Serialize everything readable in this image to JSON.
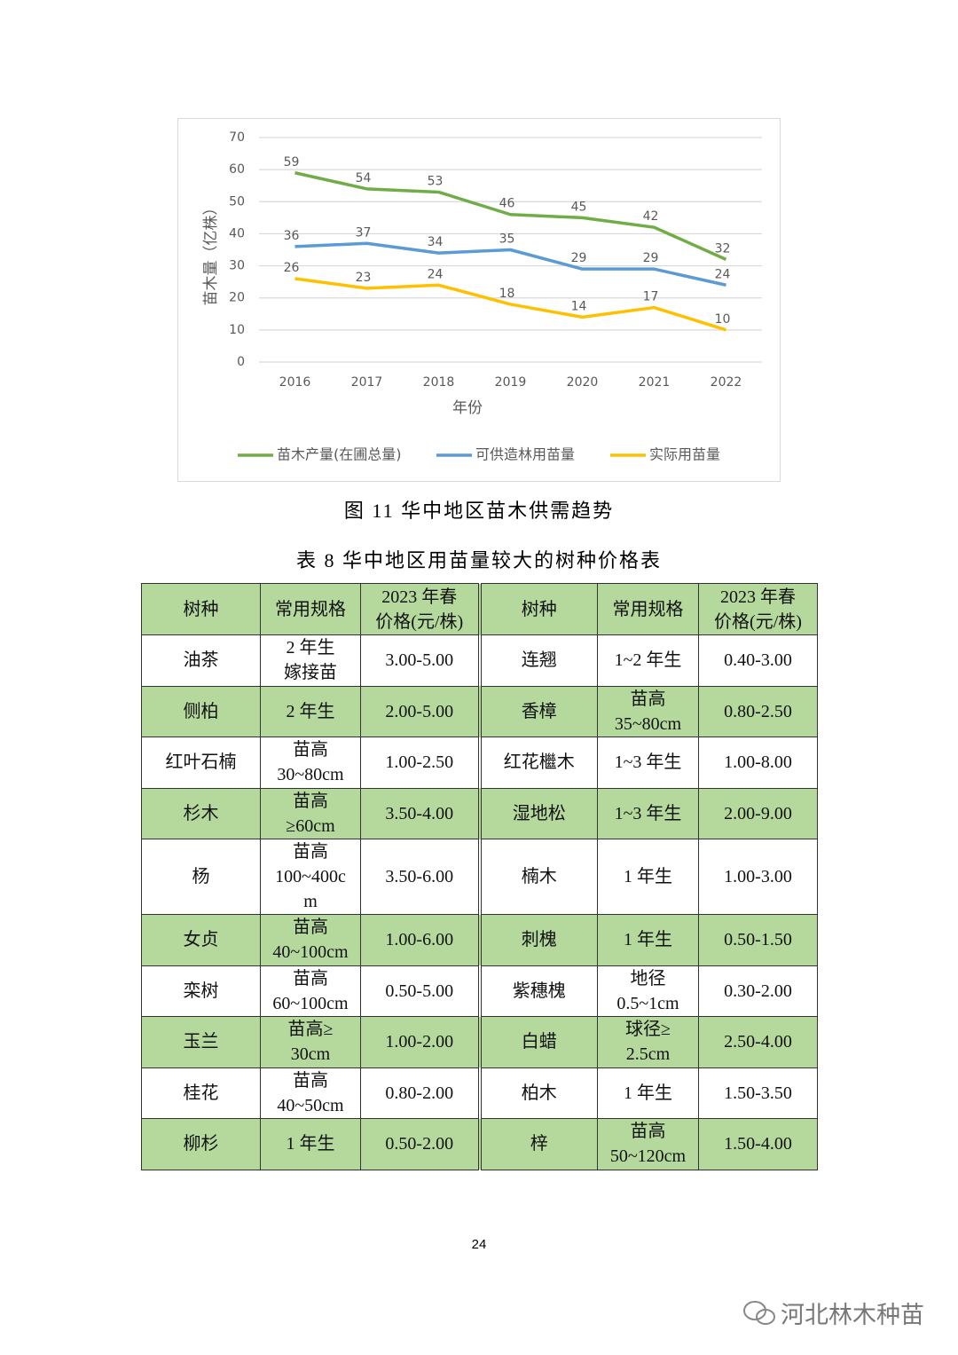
{
  "chart_data": {
    "type": "line",
    "xlabel": "年份",
    "ylabel": "苗木量（亿株）",
    "categories": [
      "2016",
      "2017",
      "2018",
      "2019",
      "2020",
      "2021",
      "2022"
    ],
    "series": [
      {
        "name": "苗木产量(在圃总量)",
        "color": "#70ad47",
        "values": [
          59,
          54,
          53,
          46,
          45,
          42,
          32
        ]
      },
      {
        "name": "可供造林用苗量",
        "color": "#5b9bd5",
        "values": [
          36,
          37,
          34,
          35,
          29,
          29,
          24
        ]
      },
      {
        "name": "实际用苗量",
        "color": "#ffc000",
        "values": [
          26,
          23,
          24,
          18,
          14,
          17,
          10
        ]
      }
    ],
    "ylim": [
      0,
      70
    ],
    "yticks": [
      0,
      10,
      20,
      30,
      40,
      50,
      60,
      70
    ],
    "grid": true,
    "legend": "bottom",
    "data_labels": true
  },
  "figure_caption": "图 11  华中地区苗木供需趋势",
  "table_title": "表 8  华中地区用苗量较大的树种价格表",
  "table": {
    "header": [
      "树种",
      "常用规格",
      "2023 年春\n价格(元/株)",
      "树种",
      "常用规格",
      "2023 年春\n价格(元/株)"
    ],
    "rows": [
      [
        "油茶",
        "2 年生\n嫁接苗",
        "3.00-5.00",
        "连翘",
        "1~2 年生",
        "0.40-3.00"
      ],
      [
        "侧柏",
        "2 年生",
        "2.00-5.00",
        "香樟",
        "苗高\n35~80cm",
        "0.80-2.50"
      ],
      [
        "红叶石楠",
        "苗高\n30~80cm",
        "1.00-2.50",
        "红花檵木",
        "1~3 年生",
        "1.00-8.00"
      ],
      [
        "杉木",
        "苗高\n≥60cm",
        "3.50-4.00",
        "湿地松",
        "1~3 年生",
        "2.00-9.00"
      ],
      [
        "杨",
        "苗高\n100~400c\nm",
        "3.50-6.00",
        "楠木",
        "1 年生",
        "1.00-3.00"
      ],
      [
        "女贞",
        "苗高\n40~100cm",
        "1.00-6.00",
        "刺槐",
        "1 年生",
        "0.50-1.50"
      ],
      [
        "栾树",
        "苗高\n60~100cm",
        "0.50-5.00",
        "紫穗槐",
        "地径\n0.5~1cm",
        "0.30-2.00"
      ],
      [
        "玉兰",
        "苗高≥\n30cm",
        "1.00-2.00",
        "白蜡",
        "球径≥\n2.5cm",
        "2.50-4.00"
      ],
      [
        "桂花",
        "苗高\n40~50cm",
        "0.80-2.00",
        "柏木",
        "1 年生",
        "1.50-3.50"
      ],
      [
        "柳杉",
        "1 年生",
        "0.50-2.00",
        "梓",
        "苗高\n50~120cm",
        "1.50-4.00"
      ]
    ]
  },
  "page_number": "24",
  "watermark": "河北林木种苗"
}
